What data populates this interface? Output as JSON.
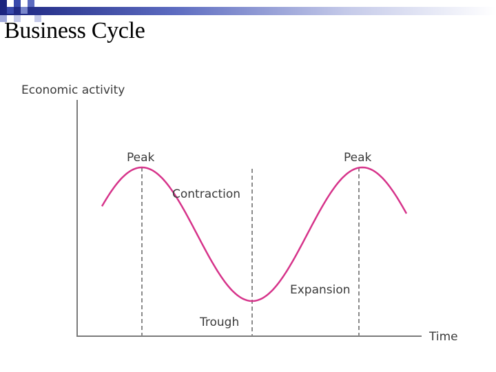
{
  "slide": {
    "title": "Business Cycle"
  },
  "diagram": {
    "y_axis_label": "Economic activity",
    "x_axis_label": "Time",
    "labels": {
      "peak_left": "Peak",
      "peak_right": "Peak",
      "contraction": "Contraction",
      "trough": "Trough",
      "expansion": "Expansion"
    },
    "colors": {
      "curve": "#d6338a",
      "axis": "#7a7a7a",
      "guide": "#8a8a8a",
      "header_navy": "#1a237e"
    }
  }
}
